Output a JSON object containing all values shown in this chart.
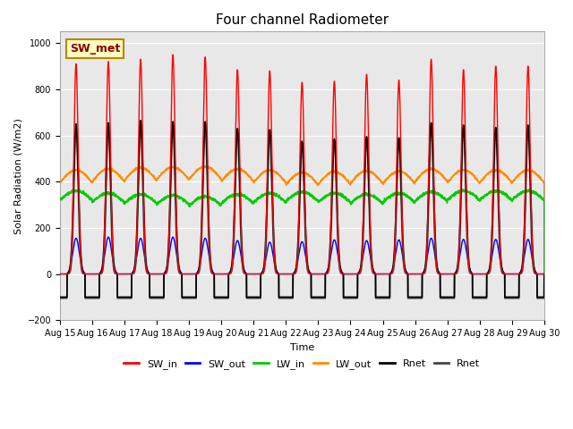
{
  "title": "Four channel Radiometer",
  "ylabel": "Solar Radiation (W/m2)",
  "xlabel": "Time",
  "ylim": [
    -200,
    1050
  ],
  "xlim": [
    0,
    15
  ],
  "num_days": 15,
  "points_per_day": 288,
  "SW_in_peaks": [
    910,
    920,
    930,
    950,
    940,
    885,
    880,
    830,
    835,
    865,
    840,
    930,
    885,
    900,
    900
  ],
  "SW_out_peaks": [
    155,
    160,
    155,
    160,
    155,
    145,
    138,
    140,
    148,
    145,
    148,
    155,
    150,
    150,
    150
  ],
  "LW_in_values": [
    320,
    310,
    305,
    300,
    295,
    305,
    310,
    315,
    310,
    305,
    310,
    315,
    320,
    320,
    320
  ],
  "LW_in_day_bump": 40,
  "LW_out_values": [
    395,
    400,
    405,
    408,
    410,
    400,
    395,
    385,
    388,
    392,
    390,
    400,
    395,
    395,
    395
  ],
  "LW_out_day_bump": 55,
  "Rnet_peaks": [
    650,
    655,
    665,
    660,
    660,
    630,
    625,
    575,
    585,
    595,
    590,
    655,
    645,
    635,
    645
  ],
  "Rnet_night": -100,
  "bg_color": "#e8e8e8",
  "plot_bg": "#d8d8d8",
  "series_colors": {
    "SW_in": "#ff0000",
    "SW_out": "#0000ff",
    "LW_in": "#00cc00",
    "LW_out": "#ff8c00",
    "Rnet": "#000000",
    "Rnet2": "#444444"
  },
  "legend_labels": [
    "SW_in",
    "SW_out",
    "LW_in",
    "LW_out",
    "Rnet",
    "Rnet"
  ],
  "annotation_text": "SW_met",
  "annotation_color": "#8b0000",
  "annotation_bg": "#ffffc0",
  "annotation_edge": "#b8860b",
  "tick_labels": [
    "Aug 15",
    "Aug 16",
    "Aug 17",
    "Aug 18",
    "Aug 19",
    "Aug 20",
    "Aug 21",
    "Aug 22",
    "Aug 23",
    "Aug 24",
    "Aug 25",
    "Aug 26",
    "Aug 27",
    "Aug 28",
    "Aug 29",
    "Aug 30"
  ],
  "tick_fontsize": 7,
  "title_fontsize": 11,
  "axis_fontsize": 8,
  "legend_fontsize": 8,
  "SW_in_sigma": 0.065,
  "SW_in_day_start": 0.22,
  "SW_in_day_end": 0.78,
  "SW_out_sigma": 0.1,
  "Rnet_sigma": 0.075,
  "Rnet_day_start": 0.22,
  "Rnet_day_end": 0.78
}
